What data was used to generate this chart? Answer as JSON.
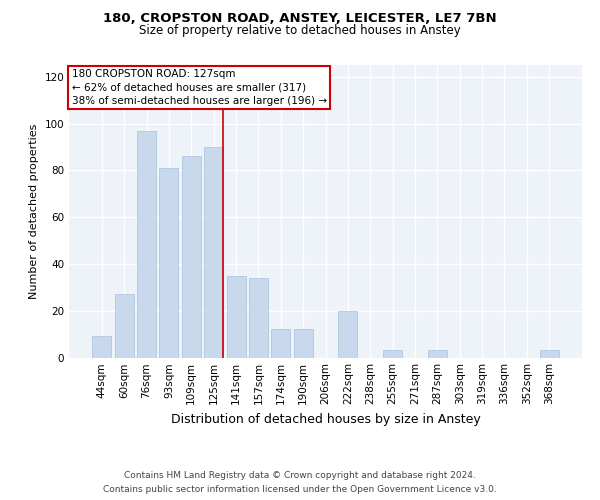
{
  "title1": "180, CROPSTON ROAD, ANSTEY, LEICESTER, LE7 7BN",
  "title2": "Size of property relative to detached houses in Anstey",
  "xlabel": "Distribution of detached houses by size in Anstey",
  "ylabel": "Number of detached properties",
  "categories": [
    "44sqm",
    "60sqm",
    "76sqm",
    "93sqm",
    "109sqm",
    "125sqm",
    "141sqm",
    "157sqm",
    "174sqm",
    "190sqm",
    "206sqm",
    "222sqm",
    "238sqm",
    "255sqm",
    "271sqm",
    "287sqm",
    "303sqm",
    "319sqm",
    "336sqm",
    "352sqm",
    "368sqm"
  ],
  "values": [
    9,
    27,
    97,
    81,
    86,
    90,
    35,
    34,
    12,
    12,
    0,
    20,
    0,
    3,
    0,
    3,
    0,
    0,
    0,
    0,
    3
  ],
  "bar_color": "#c8d9ee",
  "bar_edge_color": "#a8c0dc",
  "highlight_index": 5,
  "highlight_line_color": "#cc0000",
  "annotation_text": "180 CROPSTON ROAD: 127sqm\n← 62% of detached houses are smaller (317)\n38% of semi-detached houses are larger (196) →",
  "annotation_box_color": "#ffffff",
  "annotation_box_edge": "#cc0000",
  "ylim": [
    0,
    125
  ],
  "yticks": [
    0,
    20,
    40,
    60,
    80,
    100,
    120
  ],
  "footer_text": "Contains HM Land Registry data © Crown copyright and database right 2024.\nContains public sector information licensed under the Open Government Licence v3.0.",
  "bg_color": "#eef2f9",
  "grid_color": "#ffffff",
  "title1_fontsize": 9.5,
  "title2_fontsize": 8.5,
  "xlabel_fontsize": 9,
  "ylabel_fontsize": 8,
  "tick_fontsize": 7.5,
  "footer_fontsize": 6.5,
  "annotation_fontsize": 7.5
}
